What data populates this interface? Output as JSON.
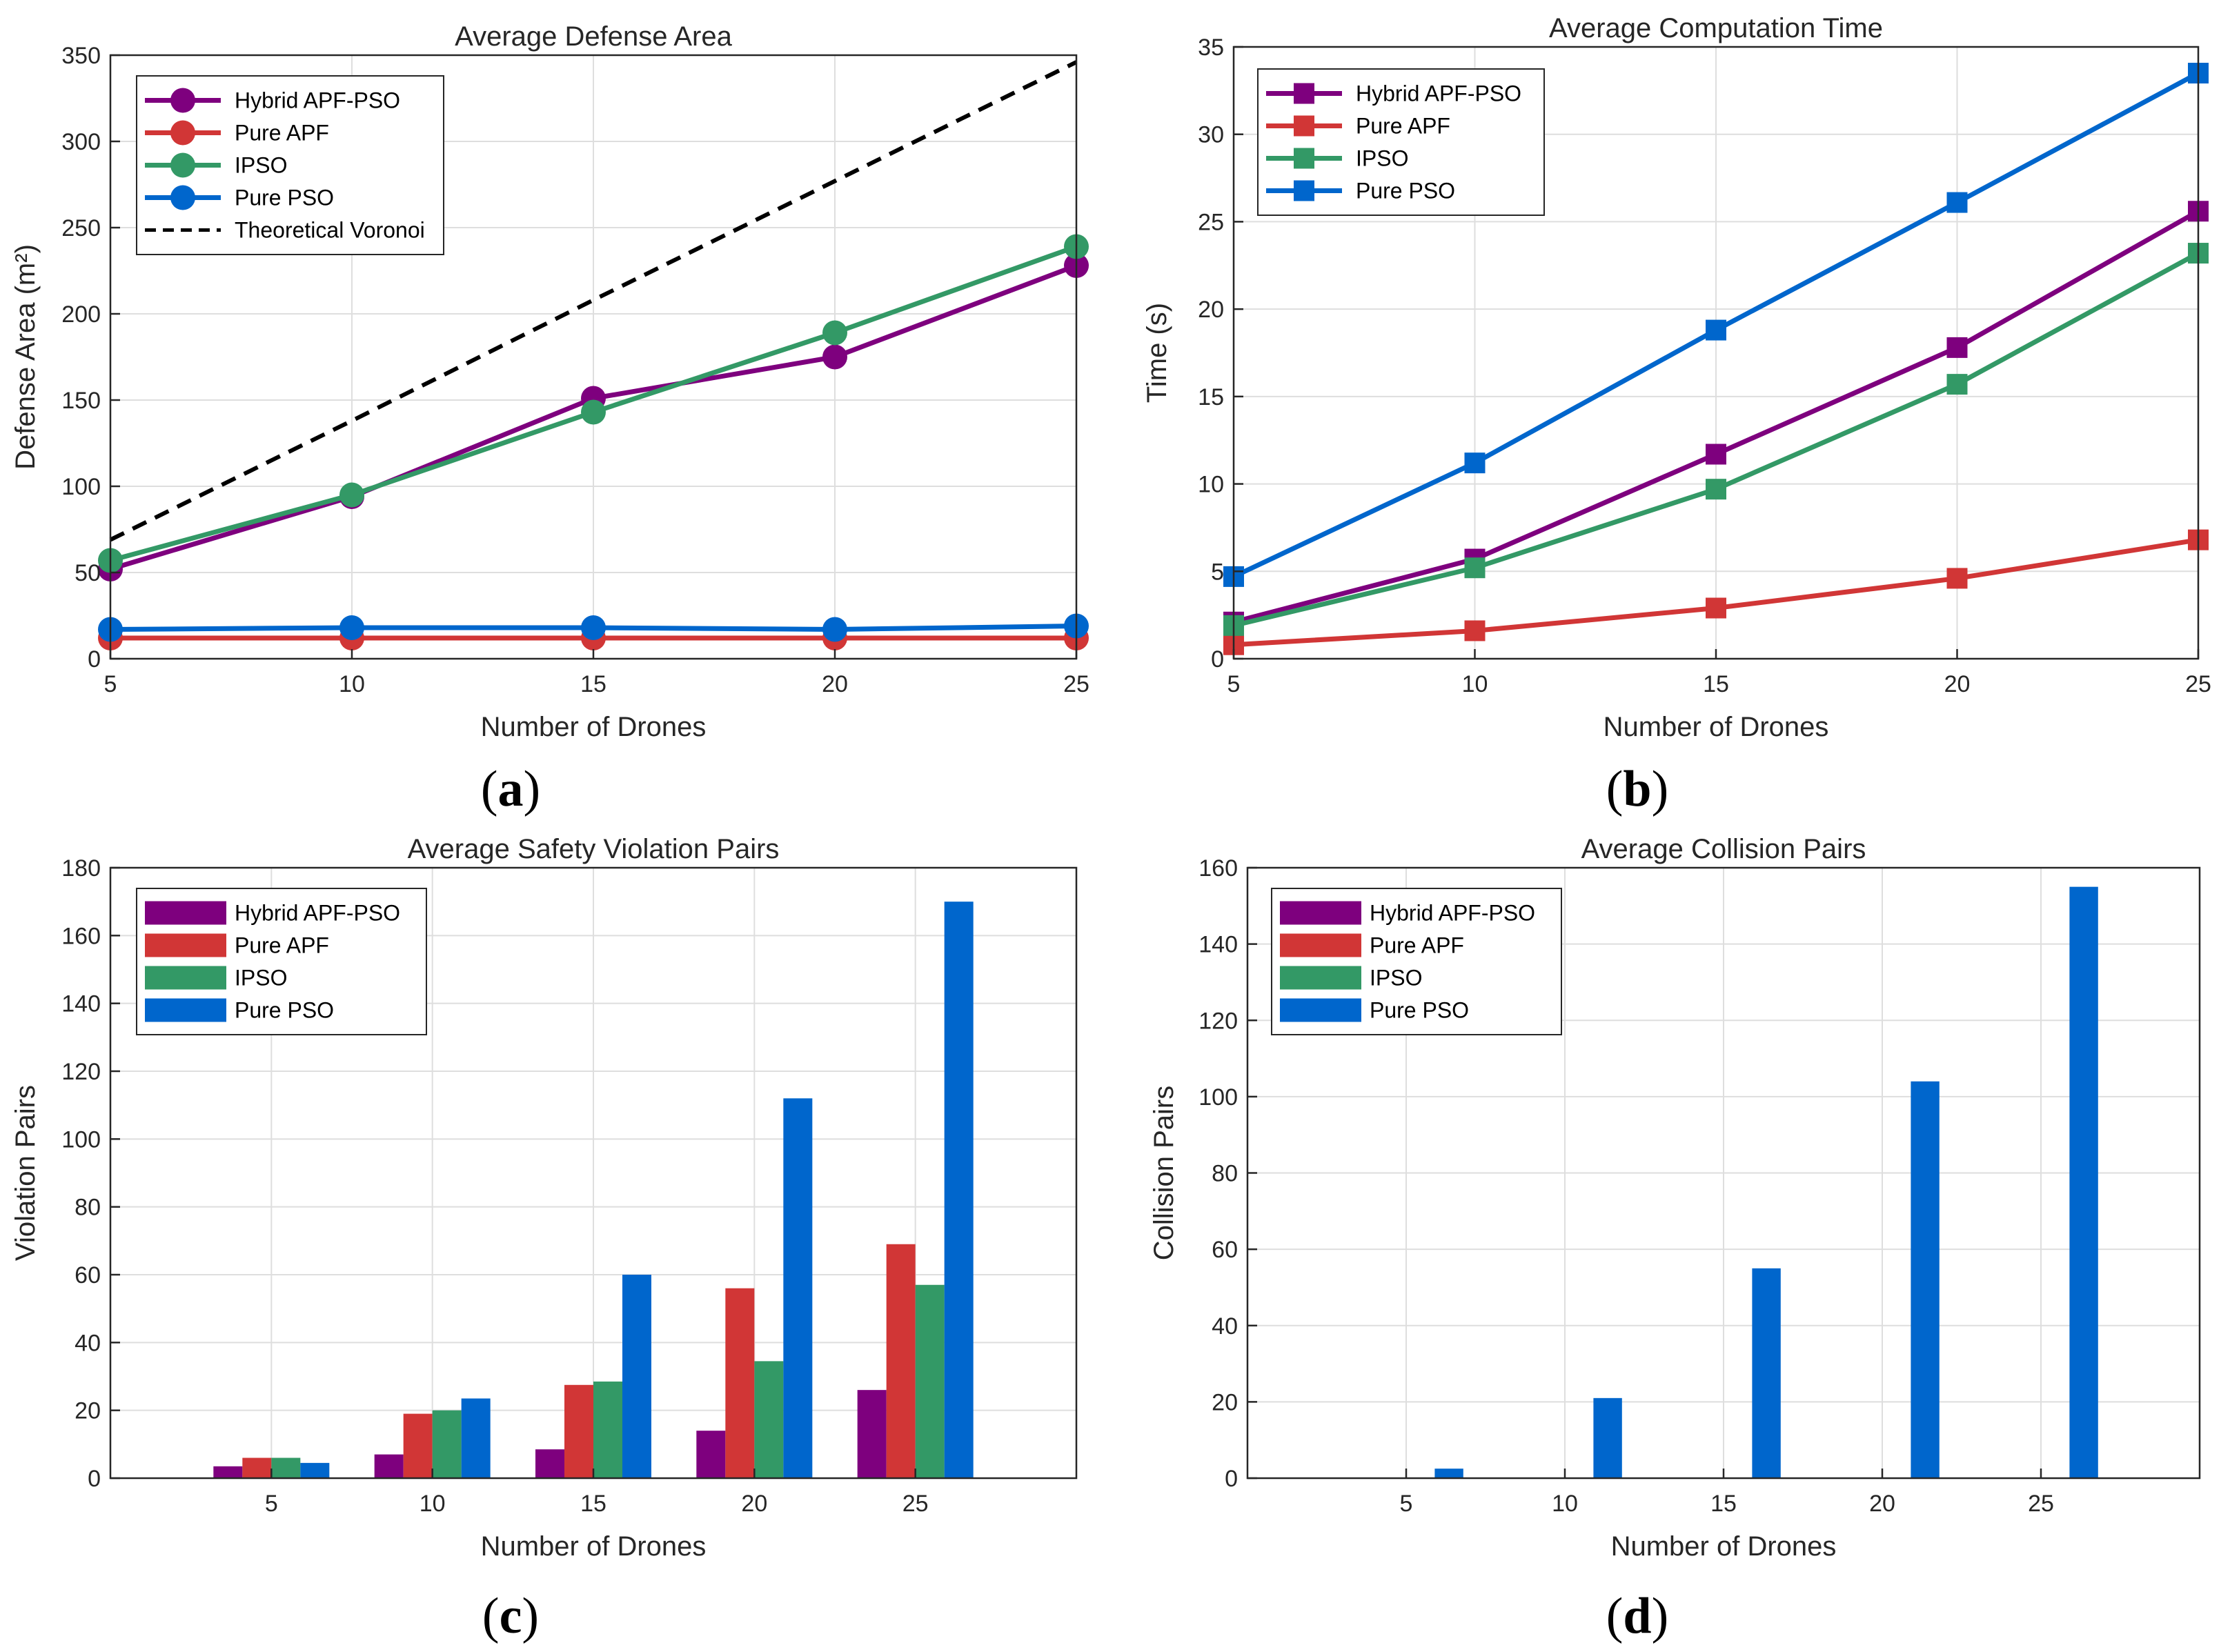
{
  "colors": {
    "hybrid": "#7e007e",
    "apf": "#d13636",
    "ipso": "#339966",
    "pso": "#0066cc",
    "voronoi": "#000000",
    "grid": "#dedede",
    "axis": "#262626"
  },
  "captions": [
    "(a)",
    "(b)",
    "(c)",
    "(d)"
  ],
  "chart_data": [
    {
      "type": "line",
      "title": "Average Defense Area",
      "xlabel": "Number of Drones",
      "ylabel": "Defense Area (m²)",
      "x": [
        5,
        10,
        15,
        20,
        25
      ],
      "xlim": [
        5,
        25
      ],
      "ylim": [
        0,
        350
      ],
      "xticks": [
        5,
        10,
        15,
        20,
        25
      ],
      "yticks": [
        0,
        50,
        100,
        150,
        200,
        250,
        300,
        350
      ],
      "marker": "circle",
      "grid": true,
      "legend": "top-left",
      "series": [
        {
          "name": "Hybrid APF-PSO",
          "color": "#7e007e",
          "values": [
            52,
            94,
            151,
            175,
            228
          ]
        },
        {
          "name": "Pure APF",
          "color": "#d13636",
          "values": [
            12,
            12,
            12,
            12,
            12
          ]
        },
        {
          "name": "IPSO",
          "color": "#339966",
          "values": [
            57,
            95,
            143,
            189,
            239
          ]
        },
        {
          "name": "Pure PSO",
          "color": "#0066cc",
          "values": [
            17,
            18,
            18,
            17,
            19
          ]
        },
        {
          "name": "Theoretical Voronoi",
          "color": "#000000",
          "dashed": true,
          "values": [
            69,
            138,
            208,
            277,
            346
          ]
        }
      ]
    },
    {
      "type": "line",
      "title": "Average Computation Time",
      "xlabel": "Number of Drones",
      "ylabel": "Time (s)",
      "x": [
        5,
        10,
        15,
        20,
        25
      ],
      "xlim": [
        5,
        25
      ],
      "ylim": [
        0,
        35
      ],
      "xticks": [
        5,
        10,
        15,
        20,
        25
      ],
      "yticks": [
        0,
        5,
        10,
        15,
        20,
        25,
        30,
        35
      ],
      "marker": "square",
      "grid": true,
      "legend": "top-left",
      "series": [
        {
          "name": "Hybrid APF-PSO",
          "color": "#7e007e",
          "values": [
            2.1,
            5.7,
            11.7,
            17.8,
            25.6
          ]
        },
        {
          "name": "Pure APF",
          "color": "#d13636",
          "values": [
            0.8,
            1.6,
            2.9,
            4.6,
            6.8
          ]
        },
        {
          "name": "IPSO",
          "color": "#339966",
          "values": [
            1.9,
            5.2,
            9.7,
            15.7,
            23.2
          ]
        },
        {
          "name": "Pure PSO",
          "color": "#0066cc",
          "values": [
            4.7,
            11.2,
            18.8,
            26.1,
            33.5
          ]
        }
      ]
    },
    {
      "type": "bar",
      "title": "Average Safety Violation Pairs",
      "xlabel": "Number of Drones",
      "ylabel": "Violation Pairs",
      "categories": [
        "5",
        "10",
        "15",
        "20",
        "25"
      ],
      "xlim": [
        0,
        30
      ],
      "ylim": [
        0,
        180
      ],
      "yticks": [
        0,
        20,
        40,
        60,
        80,
        100,
        120,
        140,
        160,
        180
      ],
      "grid": true,
      "legend": "top-left",
      "series": [
        {
          "name": "Hybrid APF-PSO",
          "color": "#7e007e",
          "values": [
            3.5,
            7,
            8.5,
            14,
            26
          ]
        },
        {
          "name": "Pure APF",
          "color": "#d13636",
          "values": [
            6,
            19,
            27.5,
            56,
            69
          ]
        },
        {
          "name": "IPSO",
          "color": "#339966",
          "values": [
            6,
            20,
            28.5,
            34.5,
            57
          ]
        },
        {
          "name": "Pure PSO",
          "color": "#0066cc",
          "values": [
            4.5,
            23.5,
            60,
            112,
            170
          ]
        }
      ]
    },
    {
      "type": "bar",
      "title": "Average Collision Pairs",
      "xlabel": "Number of Drones",
      "ylabel": "Collision Pairs",
      "categories": [
        "5",
        "10",
        "15",
        "20",
        "25"
      ],
      "xlim": [
        0,
        30
      ],
      "ylim": [
        0,
        160
      ],
      "yticks": [
        0,
        20,
        40,
        60,
        80,
        100,
        120,
        140,
        160
      ],
      "grid": true,
      "legend": "top-left",
      "series": [
        {
          "name": "Hybrid APF-PSO",
          "color": "#7e007e",
          "values": [
            0,
            0,
            0,
            0,
            0
          ]
        },
        {
          "name": "Pure APF",
          "color": "#d13636",
          "values": [
            0,
            0,
            0,
            0,
            0
          ]
        },
        {
          "name": "IPSO",
          "color": "#339966",
          "values": [
            0,
            0,
            0,
            0,
            0
          ]
        },
        {
          "name": "Pure PSO",
          "color": "#0066cc",
          "values": [
            2.5,
            21,
            55,
            104,
            155
          ]
        }
      ]
    }
  ]
}
